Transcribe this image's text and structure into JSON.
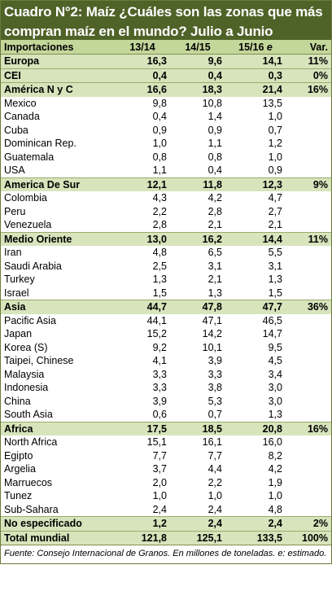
{
  "title": {
    "line1": "Cuadro N°2: Maíz ¿Cuáles son las zonas que más",
    "line2": "compran maíz en el mundo? Julio a Junio"
  },
  "header": {
    "label": "Importaciones",
    "c1": "13/14",
    "c2": "14/15",
    "c3": "15/16",
    "c3_suffix": "e",
    "var": "Var."
  },
  "rows": [
    {
      "type": "region",
      "name": "Europa",
      "v1": "16,3",
      "v2": "9,6",
      "v3": "14,1",
      "var": "11%"
    },
    {
      "type": "region",
      "name": "CEI",
      "v1": "0,4",
      "v2": "0,4",
      "v3": "0,3",
      "var": "0%"
    },
    {
      "type": "region",
      "name": "América N y C",
      "v1": "16,6",
      "v2": "18,3",
      "v3": "21,4",
      "var": "16%"
    },
    {
      "type": "country",
      "name": "Mexico",
      "v1": "9,8",
      "v2": "10,8",
      "v3": "13,5",
      "var": ""
    },
    {
      "type": "country",
      "name": "Canada",
      "v1": "0,4",
      "v2": "1,4",
      "v3": "1,0",
      "var": ""
    },
    {
      "type": "country",
      "name": "Cuba",
      "v1": "0,9",
      "v2": "0,9",
      "v3": "0,7",
      "var": ""
    },
    {
      "type": "country",
      "name": "Dominican Rep.",
      "v1": "1,0",
      "v2": "1,1",
      "v3": "1,2",
      "var": ""
    },
    {
      "type": "country",
      "name": "Guatemala",
      "v1": "0,8",
      "v2": "0,8",
      "v3": "1,0",
      "var": ""
    },
    {
      "type": "country",
      "name": "USA",
      "v1": "1,1",
      "v2": "0,4",
      "v3": "0,9",
      "var": ""
    },
    {
      "type": "region",
      "name": "America De Sur",
      "v1": "12,1",
      "v2": "11,8",
      "v3": "12,3",
      "var": "9%"
    },
    {
      "type": "country",
      "name": "Colombia",
      "v1": "4,3",
      "v2": "4,2",
      "v3": "4,7",
      "var": ""
    },
    {
      "type": "country",
      "name": "Peru",
      "v1": "2,2",
      "v2": "2,8",
      "v3": "2,7",
      "var": ""
    },
    {
      "type": "country",
      "name": "Venezuela",
      "v1": "2,8",
      "v2": "2,1",
      "v3": "2,1",
      "var": ""
    },
    {
      "type": "region",
      "name": "Medio Oriente",
      "v1": "13,0",
      "v2": "16,2",
      "v3": "14,4",
      "var": "11%"
    },
    {
      "type": "country",
      "name": "Iran",
      "v1": "4,8",
      "v2": "6,5",
      "v3": "5,5",
      "var": ""
    },
    {
      "type": "country",
      "name": "Saudi Arabia",
      "v1": "2,5",
      "v2": "3,1",
      "v3": "3,1",
      "var": ""
    },
    {
      "type": "country",
      "name": "Turkey",
      "v1": "1,3",
      "v2": "2,1",
      "v3": "1,3",
      "var": ""
    },
    {
      "type": "country",
      "name": "Israel",
      "v1": "1,5",
      "v2": "1,3",
      "v3": "1,5",
      "var": ""
    },
    {
      "type": "region",
      "name": "Asia",
      "v1": "44,7",
      "v2": "47,8",
      "v3": "47,7",
      "var": "36%"
    },
    {
      "type": "country",
      "name": "Pacific Asia",
      "v1": "44,1",
      "v2": "47,1",
      "v3": "46,5",
      "var": ""
    },
    {
      "type": "country",
      "name": "Japan",
      "v1": "15,2",
      "v2": "14,2",
      "v3": "14,7",
      "var": ""
    },
    {
      "type": "country",
      "name": "Korea (S)",
      "v1": "9,2",
      "v2": "10,1",
      "v3": "9,5",
      "var": ""
    },
    {
      "type": "country",
      "name": "Taipei, Chinese",
      "v1": "4,1",
      "v2": "3,9",
      "v3": "4,5",
      "var": ""
    },
    {
      "type": "country",
      "name": "Malaysia",
      "v1": "3,3",
      "v2": "3,3",
      "v3": "3,4",
      "var": ""
    },
    {
      "type": "country",
      "name": "Indonesia",
      "v1": "3,3",
      "v2": "3,8",
      "v3": "3,0",
      "var": ""
    },
    {
      "type": "country",
      "name": "China",
      "v1": "3,9",
      "v2": "5,3",
      "v3": "3,0",
      "var": ""
    },
    {
      "type": "country",
      "name": "South Asia",
      "v1": "0,6",
      "v2": "0,7",
      "v3": "1,3",
      "var": ""
    },
    {
      "type": "region",
      "name": "Africa",
      "v1": "17,5",
      "v2": "18,5",
      "v3": "20,8",
      "var": "16%"
    },
    {
      "type": "country",
      "name": "North Africa",
      "v1": "15,1",
      "v2": "16,1",
      "v3": "16,0",
      "var": ""
    },
    {
      "type": "country",
      "name": "Egipto",
      "v1": "7,7",
      "v2": "7,7",
      "v3": "8,2",
      "var": ""
    },
    {
      "type": "country",
      "name": "Argelia",
      "v1": "3,7",
      "v2": "4,4",
      "v3": "4,2",
      "var": ""
    },
    {
      "type": "country",
      "name": "Marruecos",
      "v1": "2,0",
      "v2": "2,2",
      "v3": "1,9",
      "var": ""
    },
    {
      "type": "country",
      "name": "Tunez",
      "v1": "1,0",
      "v2": "1,0",
      "v3": "1,0",
      "var": ""
    },
    {
      "type": "country",
      "name": "Sub-Sahara",
      "v1": "2,4",
      "v2": "2,4",
      "v3": "4,8",
      "var": ""
    },
    {
      "type": "region",
      "name": "No especificado",
      "v1": "1,2",
      "v2": "2,4",
      "v3": "2,4",
      "var": "2%"
    },
    {
      "type": "total",
      "name": "Total mundial",
      "v1": "121,8",
      "v2": "125,1",
      "v3": "133,5",
      "var": "100%"
    }
  ],
  "source": "Fuente: Consejo Internacional de Granos. En millones de toneladas. e: estimado.",
  "colors": {
    "title_bg": "#4f6228",
    "header_bg": "#c4d79b",
    "region_bg": "#d8e4bc"
  }
}
